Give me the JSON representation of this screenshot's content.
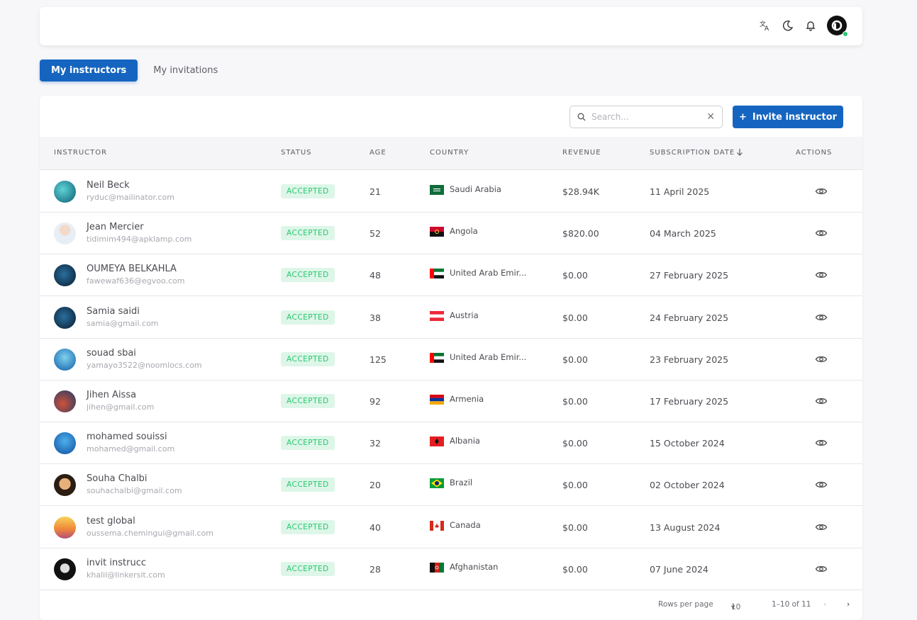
{
  "tabs": [
    {
      "label": "My instructors",
      "active": true
    },
    {
      "label": "My invitations",
      "active": false
    }
  ],
  "search": {
    "placeholder": "Search..."
  },
  "invite_button": {
    "label": "Invite instructor"
  },
  "columns": {
    "instructor": "INSTRUCTOR",
    "status": "STATUS",
    "age": "AGE",
    "country": "COUNTRY",
    "revenue": "REVENUE",
    "subscription_date": "SUBSCRIPTION DATE",
    "actions": "ACTIONS"
  },
  "rows": [
    {
      "name": "Neil Beck",
      "email": "ryduc@mailinator.com",
      "status": "ACCEPTED",
      "age": "21",
      "country": "Saudi Arabia",
      "revenue": "$28.94K",
      "date": "11 April 2025"
    },
    {
      "name": "Jean Mercier",
      "email": "tidimim494@apklamp.com",
      "status": "ACCEPTED",
      "age": "52",
      "country": "Angola",
      "revenue": "$820.00",
      "date": "04 March 2025"
    },
    {
      "name": "OUMEYA BELKAHLA",
      "email": "fawewaf636@egvoo.com",
      "status": "ACCEPTED",
      "age": "48",
      "country": "United Arab Emir...",
      "revenue": "$0.00",
      "date": "27 February 2025"
    },
    {
      "name": "Samia saidi",
      "email": "samia@gmail.com",
      "status": "ACCEPTED",
      "age": "38",
      "country": "Austria",
      "revenue": "$0.00",
      "date": "24 February 2025"
    },
    {
      "name": "souad sbai",
      "email": "yamayo3522@noomlocs.com",
      "status": "ACCEPTED",
      "age": "125",
      "country": "United Arab Emir...",
      "revenue": "$0.00",
      "date": "23 February 2025"
    },
    {
      "name": "Jihen Aissa",
      "email": "jihen@gmail.com",
      "status": "ACCEPTED",
      "age": "92",
      "country": "Armenia",
      "revenue": "$0.00",
      "date": "17 February 2025"
    },
    {
      "name": "mohamed souissi",
      "email": "mohamed@gmail.com",
      "status": "ACCEPTED",
      "age": "32",
      "country": "Albania",
      "revenue": "$0.00",
      "date": "15 October 2024"
    },
    {
      "name": "Souha Chalbi",
      "email": "souhachalbi@gmail.com",
      "status": "ACCEPTED",
      "age": "20",
      "country": "Brazil",
      "revenue": "$0.00",
      "date": "02 October 2024"
    },
    {
      "name": "test global",
      "email": "oussema.chemingui@gmail.com",
      "status": "ACCEPTED",
      "age": "40",
      "country": "Canada",
      "revenue": "$0.00",
      "date": "13 August 2024"
    },
    {
      "name": "invit instrucc",
      "email": "khalil@linkersit.com",
      "status": "ACCEPTED",
      "age": "28",
      "country": "Afghanistan",
      "revenue": "$0.00",
      "date": "07 June 2024"
    }
  ],
  "footer": {
    "rows_per_page_label": "Rows per page",
    "rows_per_page_value": "10",
    "range": "1–10 of 11"
  },
  "colors": {
    "primary": "#1565c0",
    "success": "#28c76f",
    "success_bg": "#ddf6e8"
  }
}
